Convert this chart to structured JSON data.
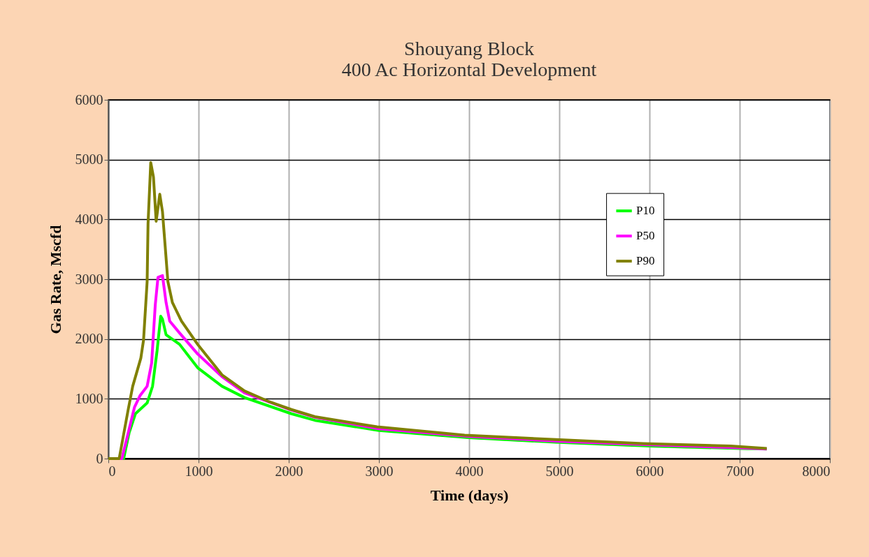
{
  "chart_data": {
    "type": "line",
    "title": [
      "Shouyang Block",
      "400 Ac Horizontal Development"
    ],
    "xlabel": "Time (days)",
    "ylabel": "Gas Rate, Mscfd",
    "xlim": [
      0,
      8000
    ],
    "xticks": [
      0,
      1000,
      2000,
      3000,
      4000,
      5000,
      6000,
      7000,
      8000
    ],
    "ylim": [
      0,
      6000
    ],
    "yticks": [
      0,
      1000,
      2000,
      3000,
      4000,
      5000,
      6000
    ],
    "grid": true,
    "legend": "right",
    "marker": "none",
    "line_style": "solid",
    "series": [
      {
        "name": "P10",
        "color": "#00ff00",
        "x": [
          0,
          170,
          230,
          300,
          430,
          490,
          540,
          580,
          600,
          640,
          790,
          990,
          1260,
          1510,
          2030,
          2290,
          3000,
          4000,
          5000,
          6000,
          7000,
          7300
        ],
        "values": [
          0,
          0,
          430,
          750,
          930,
          1210,
          1800,
          2380,
          2330,
          2070,
          1910,
          1520,
          1210,
          1020,
          750,
          640,
          470,
          350,
          270,
          210,
          170,
          160
        ]
      },
      {
        "name": "P50",
        "color": "#ff00ff",
        "x": [
          0,
          150,
          220,
          290,
          350,
          430,
          480,
          520,
          550,
          600,
          640,
          680,
          790,
          990,
          1260,
          1510,
          2030,
          2290,
          3000,
          4000,
          5000,
          6000,
          7000,
          7300
        ],
        "values": [
          0,
          0,
          430,
          860,
          1050,
          1210,
          1600,
          2570,
          3030,
          3060,
          2610,
          2300,
          2100,
          1750,
          1370,
          1100,
          810,
          690,
          500,
          370,
          290,
          230,
          180,
          160
        ]
      },
      {
        "name": "P90",
        "color": "#808000",
        "x": [
          0,
          120,
          220,
          270,
          360,
          390,
          430,
          440,
          470,
          500,
          530,
          570,
          600,
          630,
          660,
          710,
          810,
          990,
          1260,
          1510,
          1770,
          2030,
          2290,
          2980,
          3950,
          4920,
          5930,
          6900,
          7300
        ],
        "values": [
          0,
          0,
          820,
          1210,
          1680,
          1980,
          2960,
          3930,
          4950,
          4710,
          3970,
          4420,
          4130,
          3550,
          2960,
          2610,
          2300,
          1910,
          1400,
          1130,
          960,
          820,
          700,
          530,
          390,
          320,
          250,
          210,
          170
        ]
      }
    ]
  }
}
